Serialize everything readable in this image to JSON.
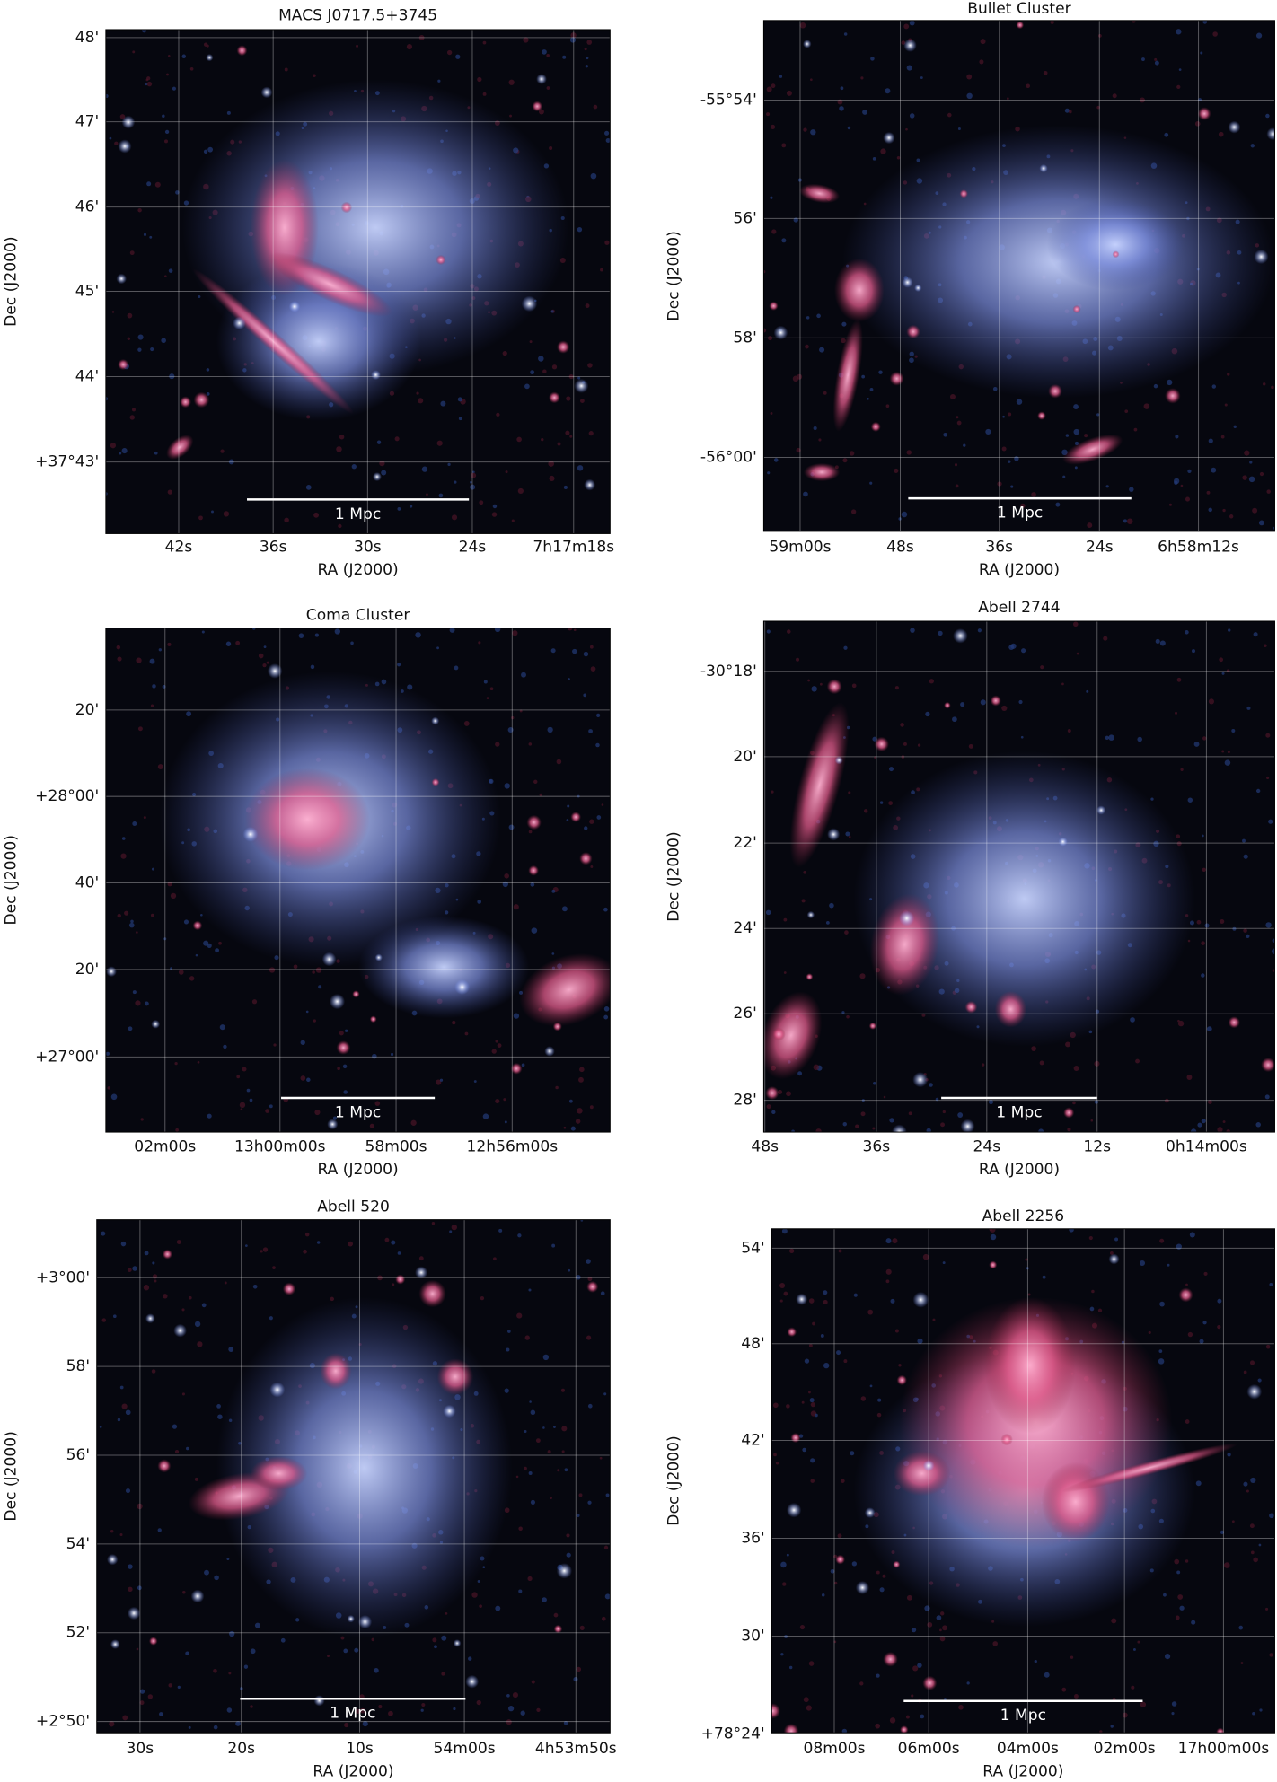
{
  "panels": [
    {
      "title": "MACS J0717.5+3745",
      "x_ticks": [
        "42s",
        "36s",
        "30s",
        "24s",
        "7h17m18s"
      ],
      "y_ticks": [
        "48'",
        "47'",
        "46'",
        "45'",
        "44'",
        "+37°43'"
      ],
      "x_label": "RA (J2000)",
      "y_label": "Dec (J2000)",
      "scale_bar": "1 Mpc"
    },
    {
      "title": "Bullet Cluster",
      "x_ticks": [
        "59m00s",
        "48s",
        "36s",
        "24s",
        "6h58m12s"
      ],
      "y_ticks": [
        "-55°54'",
        "56'",
        "58'",
        "-56°00'"
      ],
      "x_label": "RA (J2000)",
      "y_label": "Dec (J2000)",
      "scale_bar": "1 Mpc"
    },
    {
      "title": "Coma Cluster",
      "x_ticks": [
        "02m00s",
        "13h00m00s",
        "58m00s",
        "12h56m00s"
      ],
      "y_ticks": [
        "20'",
        "+28°00'",
        "40'",
        "20'",
        "+27°00'"
      ],
      "x_label": "RA (J2000)",
      "y_label": "Dec (J2000)",
      "scale_bar": "1 Mpc"
    },
    {
      "title": "Abell 2744",
      "x_ticks": [
        "48s",
        "36s",
        "24s",
        "12s",
        "0h14m00s"
      ],
      "y_ticks": [
        "-30°18'",
        "20'",
        "22'",
        "24'",
        "26'",
        "28'"
      ],
      "x_label": "RA (J2000)",
      "y_label": "Dec (J2000)",
      "scale_bar": "1 Mpc"
    },
    {
      "title": "Abell 520",
      "x_ticks": [
        "30s",
        "20s",
        "10s",
        "54m00s",
        "4h53m50s"
      ],
      "y_ticks": [
        "+3°00'",
        "58'",
        "56'",
        "54'",
        "52'",
        "+2°50'"
      ],
      "x_label": "RA (J2000)",
      "y_label": "Dec (J2000)",
      "scale_bar": "1 Mpc"
    },
    {
      "title": "Abell 2256",
      "x_ticks": [
        "08m00s",
        "06m00s",
        "04m00s",
        "02m00s",
        "17h00m00s"
      ],
      "y_ticks": [
        "54'",
        "48'",
        "42'",
        "36'",
        "30'",
        "+78°24'"
      ],
      "x_label": "RA (J2000)",
      "y_label": "Dec (J2000)",
      "scale_bar": "1 Mpc"
    }
  ]
}
